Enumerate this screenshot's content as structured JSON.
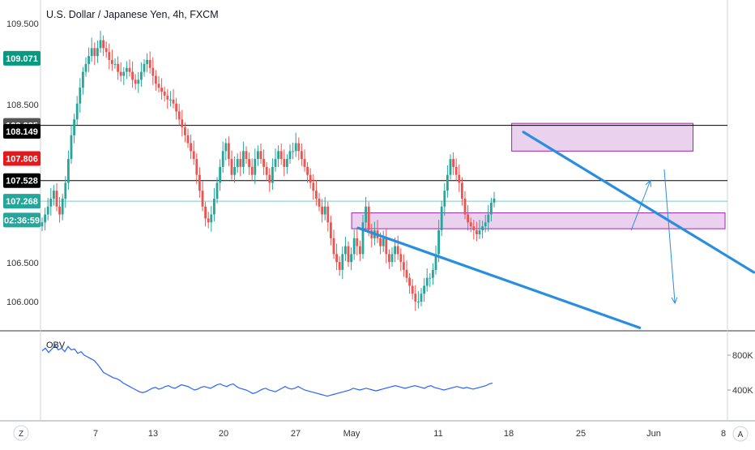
{
  "chart_title": "U.S. Dollar / Japanese Yen, 4h, FXCM",
  "indicator_label": "OBV",
  "y_ticks": [
    "109.500",
    "108.500",
    "106.500",
    "106.000"
  ],
  "x_ticks": [
    "7",
    "13",
    "20",
    "27",
    "May",
    "11",
    "18",
    "25",
    "Jun",
    "8"
  ],
  "obv_ticks": [
    "800K",
    "400K"
  ],
  "corner_left": "Z",
  "corner_right": "A",
  "price_badges": [
    {
      "label": "109.071",
      "value": 109.071,
      "color": "#089981",
      "text_color": "#ffffff"
    },
    {
      "label": "108.225",
      "value": 108.225,
      "color": "#555555",
      "text_color": "#ffffff"
    },
    {
      "label": "108.149",
      "value": 108.149,
      "color": "#000000",
      "text_color": "#ffffff"
    },
    {
      "label": "107.806",
      "value": 107.806,
      "color": "#e5191c",
      "text_color": "#ffffff"
    },
    {
      "label": "107.528",
      "value": 107.528,
      "color": "#000000",
      "text_color": "#ffffff"
    },
    {
      "label": "107.268",
      "value": 107.268,
      "color": "#26a69a",
      "text_color": "#ffffff"
    },
    {
      "label": "02:36:59",
      "value": 107.03,
      "color": "#26a69a",
      "text_color": "#ffffff"
    }
  ],
  "colors": {
    "up": "#26a69a",
    "down": "#ef5350",
    "trendline": "#2a8ee0",
    "zone_fill": "#e1bee7",
    "zone_stroke": "#9c27b0",
    "obv_line": "#2962ff",
    "hline": "#000000",
    "last_price_line": "#26a69a"
  },
  "chart_data": [
    {
      "type": "candlestick",
      "title": "U.S. Dollar / Japanese Yen, 4h, FXCM",
      "timeframe": "4h",
      "x_range_days": [
        31,
        70
      ],
      "ylim": [
        105.75,
        109.75
      ],
      "price_levels": [
        108.225,
        107.528
      ],
      "last_price": 107.268,
      "zones": [
        {
          "from_day": 46,
          "to_day": 63,
          "low": 107.9,
          "high": 108.25
        },
        {
          "from_day": 31,
          "to_day": 66,
          "low": 106.92,
          "high": 107.12
        }
      ],
      "trendlines": [
        {
          "from": [
            47.1,
            108.14
          ],
          "to": [
            68.7,
            106.37
          ]
        },
        {
          "from": [
            31.6,
            106.93
          ],
          "to": [
            58.0,
            105.67
          ]
        }
      ],
      "projection_arrows": [
        {
          "path": [
            [
              57.2,
              106.9
            ],
            [
              59.0,
              107.53
            ]
          ]
        },
        {
          "path": [
            [
              60.3,
              107.67
            ],
            [
              61.3,
              105.98
            ]
          ]
        }
      ],
      "closes": [
        107.0,
        107.1,
        107.2,
        107.3,
        107.4,
        107.2,
        107.1,
        107.3,
        107.5,
        107.8,
        108.1,
        108.3,
        108.5,
        108.7,
        108.9,
        109.0,
        109.1,
        109.2,
        109.1,
        109.2,
        109.3,
        109.2,
        109.15,
        109.05,
        109.0,
        109.0,
        108.9,
        108.85,
        108.9,
        108.95,
        108.9,
        108.8,
        108.75,
        108.8,
        108.9,
        109.0,
        109.05,
        108.95,
        108.85,
        108.75,
        108.7,
        108.65,
        108.6,
        108.55,
        108.55,
        108.5,
        108.4,
        108.3,
        108.2,
        108.1,
        108.0,
        107.9,
        107.8,
        107.6,
        107.4,
        107.2,
        107.05,
        107.0,
        107.1,
        107.3,
        107.5,
        107.7,
        107.9,
        108.0,
        107.8,
        107.6,
        107.7,
        107.8,
        107.7,
        107.9,
        107.8,
        107.7,
        107.6,
        107.8,
        107.9,
        107.8,
        107.7,
        107.6,
        107.5,
        107.7,
        107.8,
        107.9,
        107.8,
        107.7,
        107.8,
        107.9,
        107.9,
        108.0,
        107.9,
        107.8,
        107.7,
        107.6,
        107.5,
        107.4,
        107.3,
        107.2,
        107.1,
        107.2,
        107.0,
        106.8,
        106.6,
        106.5,
        106.4,
        106.6,
        106.7,
        106.5,
        106.6,
        106.8,
        106.7,
        106.6,
        107.0,
        107.2,
        106.9,
        106.8,
        106.9,
        106.8,
        106.7,
        106.8,
        106.6,
        106.5,
        106.6,
        106.7,
        106.6,
        106.5,
        106.4,
        106.3,
        106.2,
        106.1,
        106.0,
        106.0,
        106.1,
        106.2,
        106.3,
        106.3,
        106.4,
        106.6,
        106.9,
        107.2,
        107.4,
        107.6,
        107.8,
        107.7,
        107.6,
        107.5,
        107.3,
        107.1,
        107.0,
        106.95,
        106.9,
        106.85,
        106.9,
        106.95,
        107.0,
        107.1,
        107.25,
        107.3
      ]
    },
    {
      "type": "line",
      "name": "OBV",
      "ylim": [
        250000,
        1000000
      ],
      "ticks": [
        400000,
        800000
      ],
      "values": [
        850000,
        880000,
        830000,
        870000,
        910000,
        860000,
        880000,
        840000,
        900000,
        860000,
        870000,
        820000,
        840000,
        800000,
        780000,
        760000,
        740000,
        700000,
        650000,
        600000,
        580000,
        560000,
        540000,
        530000,
        510000,
        480000,
        460000,
        440000,
        420000,
        400000,
        380000,
        370000,
        380000,
        400000,
        420000,
        430000,
        410000,
        420000,
        440000,
        450000,
        430000,
        420000,
        440000,
        460000,
        450000,
        440000,
        420000,
        400000,
        410000,
        430000,
        440000,
        430000,
        420000,
        440000,
        460000,
        470000,
        450000,
        440000,
        460000,
        470000,
        440000,
        420000,
        410000,
        400000,
        380000,
        360000,
        370000,
        390000,
        410000,
        420000,
        400000,
        390000,
        380000,
        400000,
        420000,
        440000,
        420000,
        410000,
        420000,
        440000,
        420000,
        400000,
        390000,
        380000,
        370000,
        360000,
        350000,
        340000,
        330000,
        340000,
        350000,
        360000,
        370000,
        380000,
        390000,
        400000,
        420000,
        410000,
        400000,
        410000,
        420000,
        410000,
        400000,
        390000,
        400000,
        410000,
        420000,
        430000,
        440000,
        450000,
        440000,
        430000,
        420000,
        430000,
        440000,
        450000,
        440000,
        430000,
        420000,
        440000,
        450000,
        430000,
        420000,
        410000,
        400000,
        410000,
        420000,
        430000,
        440000,
        430000,
        420000,
        430000,
        420000,
        410000,
        420000,
        430000,
        440000,
        450000,
        470000,
        480000
      ]
    }
  ]
}
